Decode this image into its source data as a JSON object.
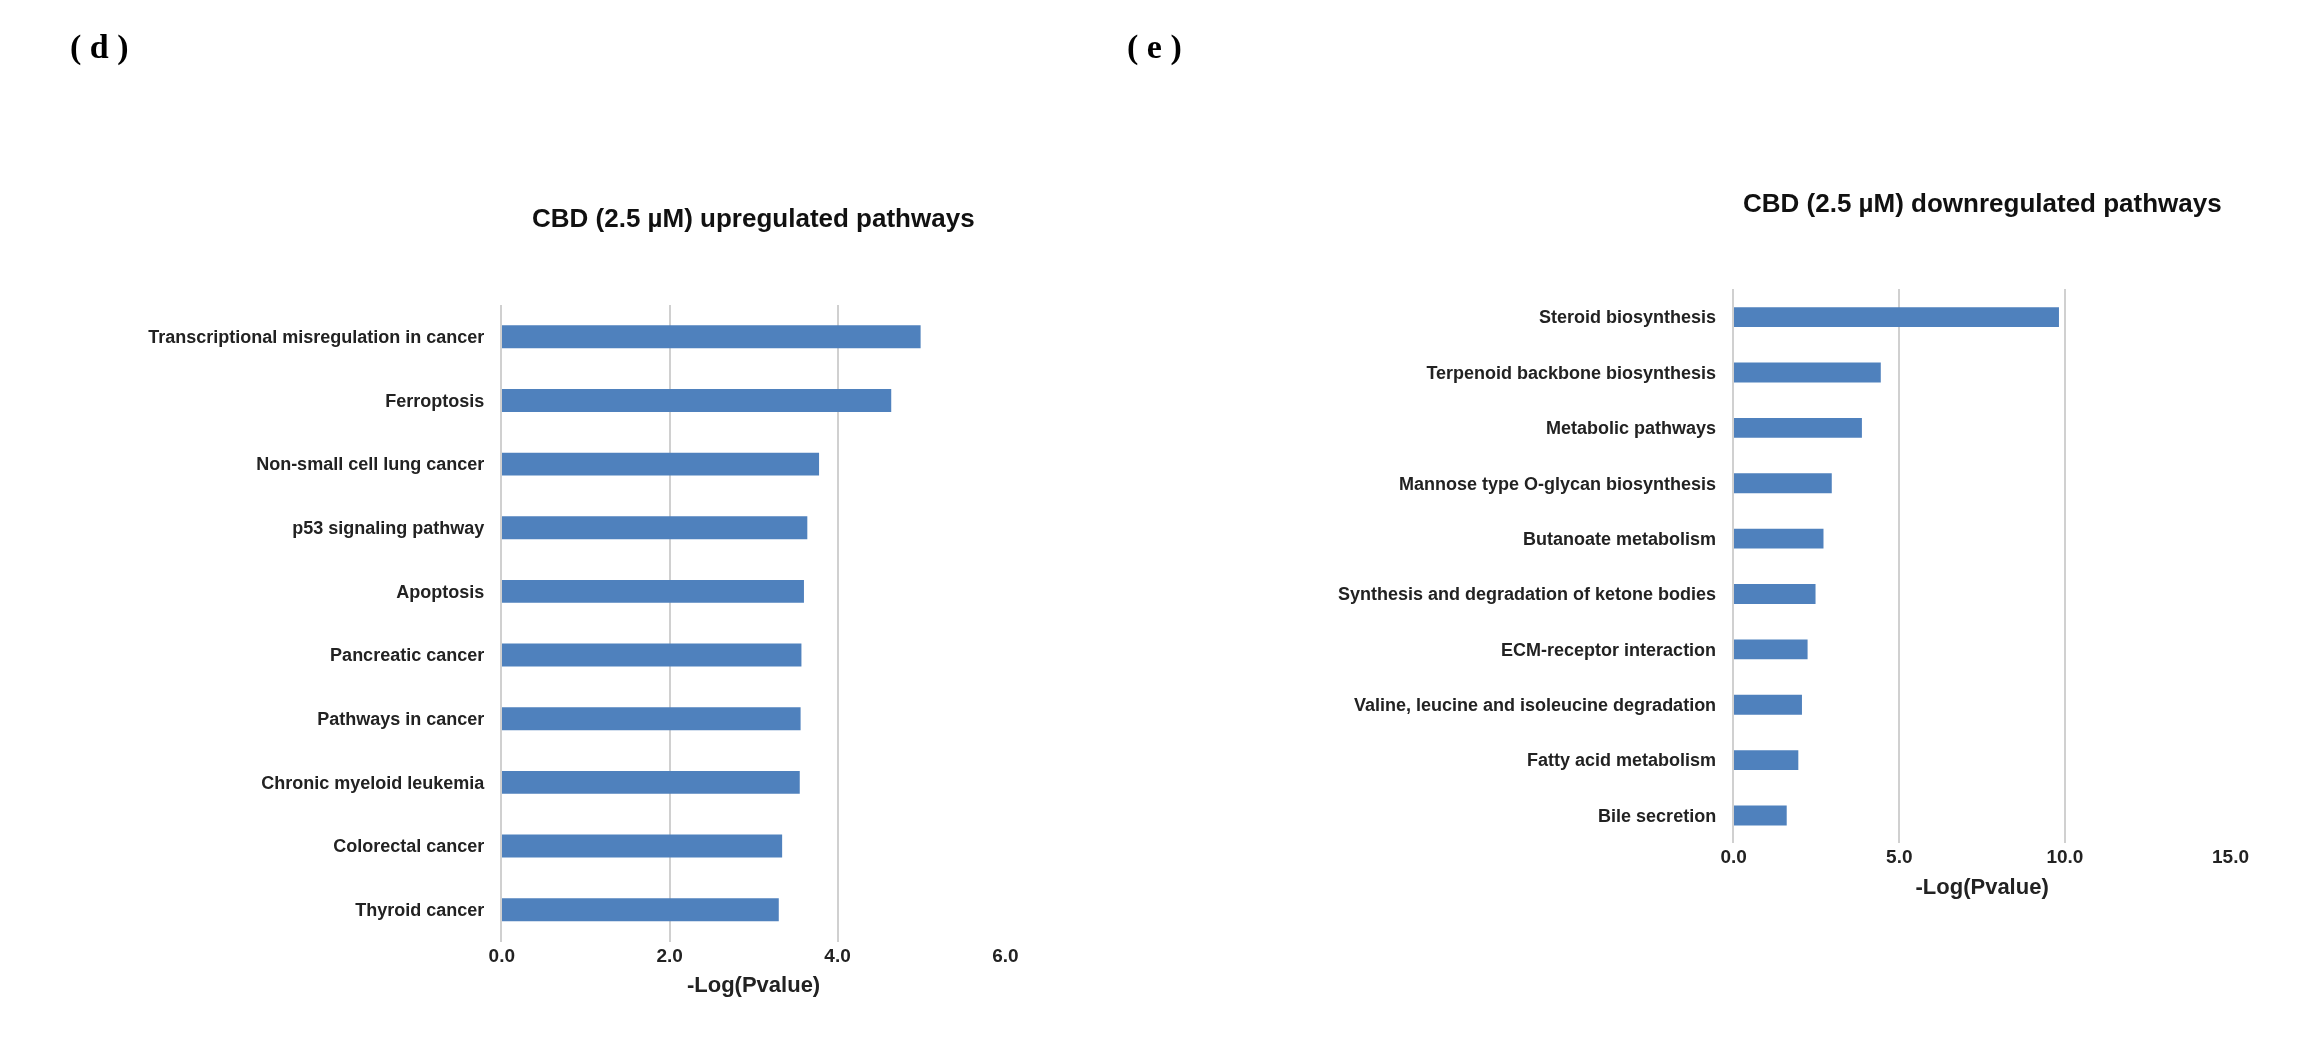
{
  "chart_data": [
    {
      "type": "bar",
      "orientation": "horizontal",
      "title": "CBD (2.5 µM) upregulated pathways",
      "xlabel": "-Log(Pvalue)",
      "annotations": [
        "( d )"
      ],
      "categories": [
        "Transcriptional misregulation in cancer",
        "Ferroptosis",
        "Non-small cell lung cancer",
        "p53 signaling pathway",
        "Apoptosis",
        "Pancreatic cancer",
        "Pathways in cancer",
        "Chronic myeloid leukemia",
        "Colorectal cancer",
        "Thyroid cancer"
      ],
      "values": [
        4.99,
        4.64,
        3.78,
        3.64,
        3.6,
        3.57,
        3.56,
        3.55,
        3.34,
        3.3
      ],
      "color": "#4f81bd",
      "xlim": [
        0,
        6
      ],
      "xticks": [
        {
          "value": 0,
          "label": "0.0"
        },
        {
          "value": 2,
          "label": "2.0"
        },
        {
          "value": 4,
          "label": "4.0"
        },
        {
          "value": 6,
          "label": "6.0"
        }
      ],
      "grid": "x"
    },
    {
      "type": "bar",
      "orientation": "horizontal",
      "title": "CBD (2.5 µM) downregulated pathways",
      "xlabel": "-Log(Pvalue)",
      "annotations": [
        "( e )"
      ],
      "categories": [
        "Steroid biosynthesis",
        "Terpenoid backbone biosynthesis",
        "Metabolic pathways",
        "Mannose type O-glycan biosynthesis",
        "Butanoate metabolism",
        "Synthesis and degradation of ketone bodies",
        "ECM-receptor interaction",
        "Valine, leucine and isoleucine degradation",
        "Fatty acid metabolism",
        "Bile secretion"
      ],
      "values": [
        9.82,
        4.44,
        3.87,
        2.96,
        2.71,
        2.47,
        2.23,
        2.06,
        1.95,
        1.6
      ],
      "color": "#4f81bd",
      "xlim": [
        0,
        15
      ],
      "xticks": [
        {
          "value": 0,
          "label": "0.0"
        },
        {
          "value": 5,
          "label": "5.0"
        },
        {
          "value": 10,
          "label": "10.0"
        },
        {
          "value": 15,
          "label": "15.0"
        }
      ],
      "grid": "x"
    }
  ]
}
